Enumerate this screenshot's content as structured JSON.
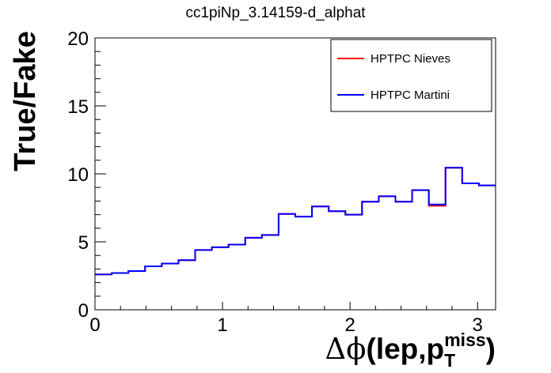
{
  "chart_data": {
    "type": "line",
    "title": "cc1piNp_3.14159-d_alphat",
    "ylabel": "True/Fake",
    "xlabel": {
      "symbol": "Δϕ",
      "main": "(lep,p",
      "superscript": "miss",
      "subscript": "T",
      "close": ")"
    },
    "xlim": [
      0,
      3.14159
    ],
    "ylim": [
      0,
      20
    ],
    "x_ticks": [
      0,
      1,
      2,
      3
    ],
    "x_tick_labels": [
      "0",
      "1",
      "2",
      "3"
    ],
    "y_ticks": [
      0,
      5,
      10,
      15,
      20
    ],
    "y_tick_labels": [
      "0",
      "5",
      "10",
      "15",
      "20"
    ],
    "grid": false,
    "legend_position": "top-right",
    "bin_edges": [
      0,
      0.1309,
      0.2618,
      0.3927,
      0.5236,
      0.6545,
      0.7854,
      0.9163,
      1.0472,
      1.1781,
      1.309,
      1.4399,
      1.5708,
      1.7017,
      1.8326,
      1.9635,
      2.0944,
      2.2253,
      2.3562,
      2.4871,
      2.618,
      2.7489,
      2.8798,
      3.0107,
      3.14159
    ],
    "series": [
      {
        "name": "HPTPC Nieves",
        "color": "#ff0000",
        "values": [
          2.6,
          2.7,
          2.85,
          3.2,
          3.4,
          3.65,
          4.4,
          4.6,
          4.8,
          5.3,
          5.5,
          7.05,
          6.85,
          7.6,
          7.25,
          7.0,
          7.95,
          8.35,
          7.95,
          8.8,
          7.65,
          10.45,
          9.3,
          9.15,
          9.15
        ]
      },
      {
        "name": "HPTPC Martini",
        "color": "#0000ff",
        "values": [
          2.6,
          2.7,
          2.85,
          3.2,
          3.4,
          3.65,
          4.4,
          4.6,
          4.8,
          5.3,
          5.5,
          7.05,
          6.85,
          7.6,
          7.25,
          7.0,
          7.95,
          8.35,
          7.95,
          8.8,
          7.75,
          10.45,
          9.3,
          9.15,
          9.15
        ]
      }
    ]
  }
}
